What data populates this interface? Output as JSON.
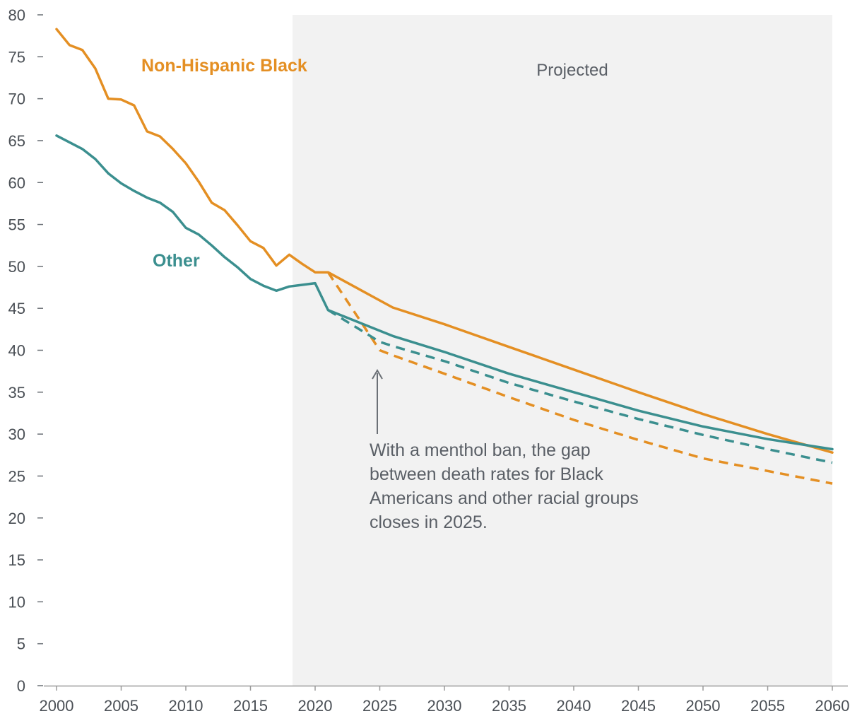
{
  "chart_data": {
    "type": "line",
    "title": "",
    "xlabel": "",
    "ylabel": "",
    "xlim": [
      2000,
      2060
    ],
    "ylim": [
      0,
      80
    ],
    "x_ticks": [
      "2000",
      "2005",
      "2010",
      "2015",
      "2020",
      "2025",
      "2030",
      "2035",
      "2040",
      "2045",
      "2050",
      "2055",
      "2060"
    ],
    "y_ticks": [
      "0",
      "5",
      "10",
      "15",
      "20",
      "25",
      "30",
      "35",
      "40",
      "45",
      "50",
      "55",
      "60",
      "65",
      "70",
      "75",
      "80"
    ],
    "projected_region": {
      "start": 2020,
      "end": 2060,
      "label": "Projected"
    },
    "series": [
      {
        "name": "Non-Hispanic Black",
        "color": "#e48f23",
        "style": "solid",
        "x": [
          2000,
          2001,
          2002,
          2003,
          2004,
          2005,
          2006,
          2007,
          2008,
          2009,
          2010,
          2011,
          2012,
          2013,
          2014,
          2015,
          2016,
          2017,
          2018,
          2019,
          2020,
          2021,
          2026,
          2030,
          2035,
          2040,
          2045,
          2050,
          2055,
          2060
        ],
        "values": [
          78.3,
          76.4,
          75.8,
          73.6,
          70.0,
          69.9,
          69.2,
          66.1,
          65.5,
          64.0,
          62.3,
          60.1,
          57.6,
          56.7,
          54.9,
          53.0,
          52.2,
          50.1,
          51.4,
          50.3,
          49.3,
          49.3,
          45.1,
          43.1,
          40.4,
          37.7,
          35.0,
          32.4,
          30.0,
          27.8
        ]
      },
      {
        "name": "Other",
        "color": "#3b8f8f",
        "style": "solid",
        "x": [
          2000,
          2001,
          2002,
          2003,
          2004,
          2005,
          2006,
          2007,
          2008,
          2009,
          2010,
          2011,
          2012,
          2013,
          2014,
          2015,
          2016,
          2017,
          2018,
          2019,
          2020,
          2021,
          2026,
          2030,
          2035,
          2040,
          2045,
          2050,
          2055,
          2060
        ],
        "values": [
          65.6,
          64.8,
          64.0,
          62.8,
          61.1,
          59.9,
          59.0,
          58.2,
          57.6,
          56.5,
          54.6,
          53.8,
          52.5,
          51.1,
          49.9,
          48.5,
          47.7,
          47.1,
          47.6,
          47.8,
          48.0,
          44.8,
          41.7,
          39.8,
          37.2,
          35.0,
          32.8,
          30.9,
          29.4,
          28.2
        ]
      },
      {
        "name": "Non-Hispanic Black (menthol ban)",
        "color": "#e48f23",
        "style": "dashed",
        "x": [
          2021,
          2025,
          2026,
          2030,
          2035,
          2040,
          2045,
          2050,
          2055,
          2060
        ],
        "values": [
          49.3,
          40.0,
          39.4,
          37.2,
          34.4,
          31.7,
          29.3,
          27.1,
          25.6,
          24.1
        ]
      },
      {
        "name": "Other (menthol ban)",
        "color": "#3b8f8f",
        "style": "dashed",
        "x": [
          2021,
          2025,
          2026,
          2030,
          2035,
          2040,
          2045,
          2050,
          2055,
          2060
        ],
        "values": [
          44.8,
          41.0,
          40.5,
          38.7,
          36.1,
          33.9,
          31.8,
          29.9,
          28.2,
          26.6
        ]
      }
    ],
    "series_labels": {
      "black": "Non-Hispanic Black",
      "other": "Other"
    },
    "annotation": {
      "lines": [
        "With a menthol ban, the gap",
        "between death rates for Black",
        "Americans and other racial groups",
        "closes in 2025."
      ],
      "points_to": {
        "x": 2025,
        "y": 40
      }
    }
  }
}
